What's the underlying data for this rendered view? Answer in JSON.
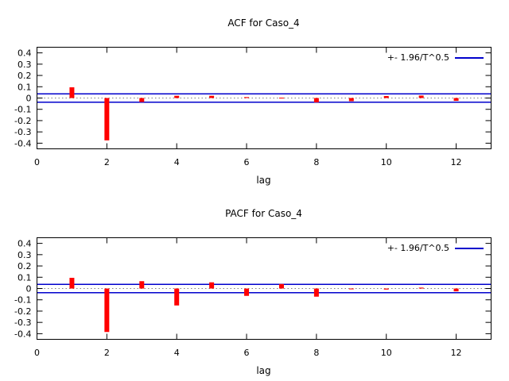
{
  "figure": {
    "background": "#ffffff"
  },
  "chart_data": [
    {
      "type": "bar",
      "title": "ACF for Caso_4",
      "xlabel": "lag",
      "legend_label": "+- 1.96/T^0.5",
      "x": [
        1,
        2,
        3,
        4,
        5,
        6,
        7,
        8,
        9,
        10,
        11,
        12
      ],
      "values": [
        0.095,
        -0.375,
        -0.035,
        0.02,
        0.02,
        0.008,
        0.003,
        -0.038,
        -0.028,
        0.018,
        0.022,
        -0.025
      ],
      "confidence_band": 0.037,
      "xlim": [
        0,
        13
      ],
      "ylim": [
        -0.45,
        0.45
      ],
      "xticks": [
        0,
        2,
        4,
        6,
        8,
        10,
        12
      ],
      "yticks": [
        -0.4,
        -0.3,
        -0.2,
        -0.1,
        0,
        0.1,
        0.2,
        0.3,
        0.4
      ],
      "grid": false,
      "legend_position": "top-right-inside",
      "colors": {
        "bar": "#ff0000",
        "band_line": "#0000cc",
        "zero_line": "#808080",
        "axis": "#000000",
        "text": "#000000"
      }
    },
    {
      "type": "bar",
      "title": "PACF for Caso_4",
      "xlabel": "lag",
      "legend_label": "+- 1.96/T^0.5",
      "x": [
        1,
        2,
        3,
        4,
        5,
        6,
        7,
        8,
        9,
        10,
        11,
        12
      ],
      "values": [
        0.095,
        -0.385,
        0.065,
        -0.15,
        0.055,
        -0.065,
        0.04,
        -0.072,
        -0.006,
        -0.009,
        0.008,
        -0.025
      ],
      "confidence_band": 0.037,
      "xlim": [
        0,
        13
      ],
      "ylim": [
        -0.45,
        0.45
      ],
      "xticks": [
        0,
        2,
        4,
        6,
        8,
        10,
        12
      ],
      "yticks": [
        -0.4,
        -0.3,
        -0.2,
        -0.1,
        0,
        0.1,
        0.2,
        0.3,
        0.4
      ],
      "grid": false,
      "legend_position": "top-right-inside",
      "colors": {
        "bar": "#ff0000",
        "band_line": "#0000cc",
        "zero_line": "#808080",
        "axis": "#000000",
        "text": "#000000"
      }
    }
  ]
}
